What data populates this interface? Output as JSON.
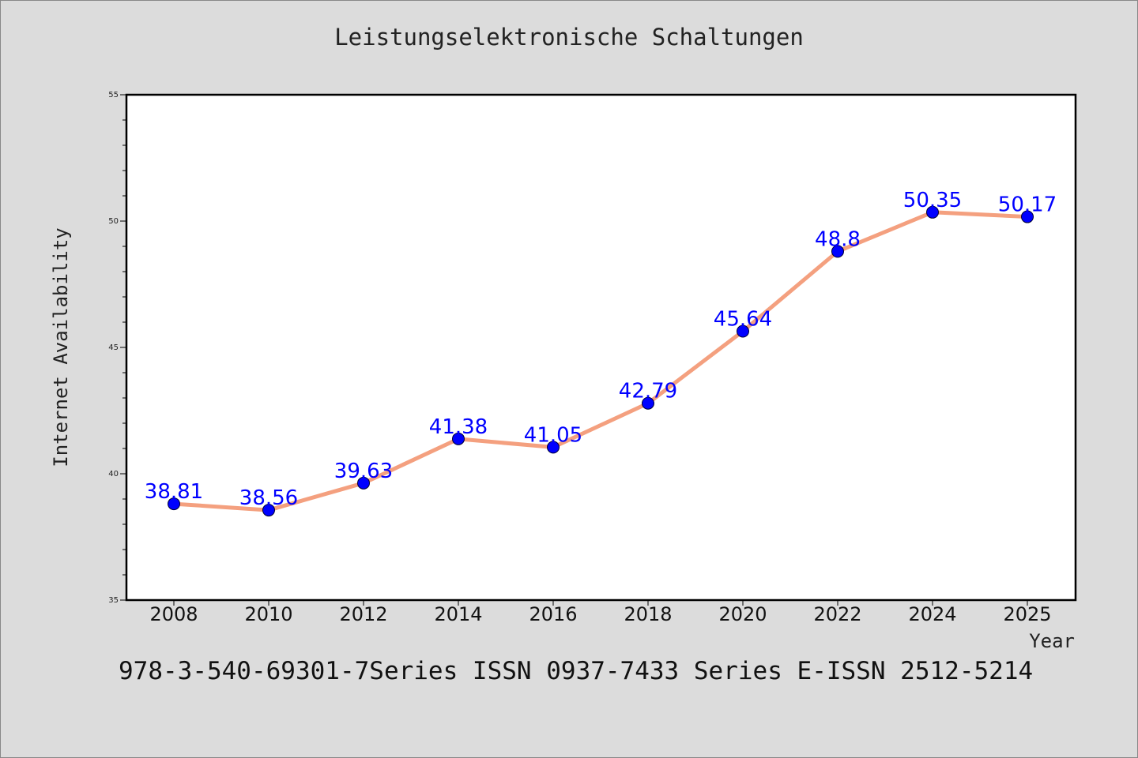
{
  "title": "Leistungselektronische Schaltungen",
  "footer": "978-3-540-69301-7Series ISSN 0937-7433 Series E-ISSN 2512-5214",
  "chart_data": {
    "type": "line",
    "title": "Leistungselektronische Schaltungen",
    "xlabel": "Year",
    "ylabel": "Internet Availability",
    "categories": [
      "2008",
      "2010",
      "2012",
      "2014",
      "2016",
      "2018",
      "2020",
      "2022",
      "2024",
      "2025"
    ],
    "series": [
      {
        "values": [
          38.81,
          38.56,
          39.63,
          41.38,
          41.05,
          42.79,
          45.64,
          48.8,
          50.35,
          50.17
        ],
        "labels": [
          "38.81",
          "38.56",
          "39.63",
          "41.38",
          "41.05",
          "42.79",
          "45.64",
          "48.8",
          "50.35",
          "50.17"
        ]
      }
    ],
    "ylim": [
      35,
      55
    ],
    "yticks": [
      "35",
      "40",
      "45",
      "50",
      "55"
    ],
    "grid": false,
    "line_color": "#f4a07f",
    "marker_color": "#0000ff",
    "label_color": "#0000ff"
  }
}
